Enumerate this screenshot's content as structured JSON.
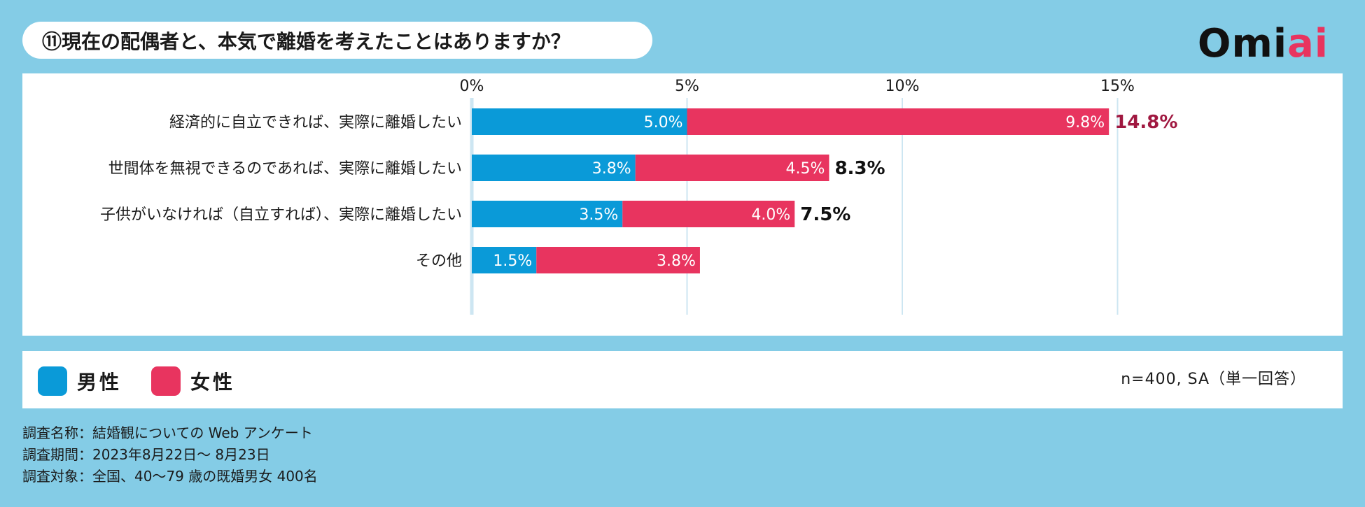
{
  "header": {
    "title": "⑪現在の配偶者と、本気で離婚を考えたことはありますか？",
    "logo_main": "Omi",
    "logo_accent": "ai"
  },
  "colors": {
    "male": "#0a9ad8",
    "female": "#e8345f",
    "total_highlight": "#a01840",
    "total_default": "#111111",
    "grid": "#cde6f2"
  },
  "chart_data": {
    "type": "bar",
    "orientation": "horizontal",
    "stacked": true,
    "x_axis": {
      "min": 0,
      "max": 16,
      "ticks": [
        0,
        5,
        10,
        15
      ],
      "tick_labels": [
        "0%",
        "5%",
        "10%",
        "15%"
      ]
    },
    "categories": [
      "経済的に自立できれば、実際に離婚したい",
      "世間体を無視できるのであれば、実際に離婚したい",
      "子供がいなければ（自立すれば）、実際に離婚したい",
      "その他"
    ],
    "series": [
      {
        "name": "男性",
        "values": [
          5.0,
          3.8,
          3.5,
          1.5
        ],
        "labels": [
          "5.0%",
          "3.8%",
          "3.5%",
          "1.5%"
        ]
      },
      {
        "name": "女性",
        "values": [
          9.8,
          4.5,
          4.0,
          3.8
        ],
        "labels": [
          "9.8%",
          "4.5%",
          "4.0%",
          "3.8%"
        ]
      }
    ],
    "totals": [
      "14.8%",
      "8.3%",
      "7.5%",
      ""
    ],
    "legend_position": "bottom-left",
    "grid": true
  },
  "legend": {
    "male": "男性",
    "female": "女性"
  },
  "sample_note": "n=400, SA（単一回答）",
  "footer": {
    "survey_name": "調査名称：結婚観についての Web アンケート",
    "survey_period": "調査期間：2023年8月22日〜 8月23日",
    "survey_target": "調査対象：全国、40〜79 歳の既婚男女 400名"
  }
}
